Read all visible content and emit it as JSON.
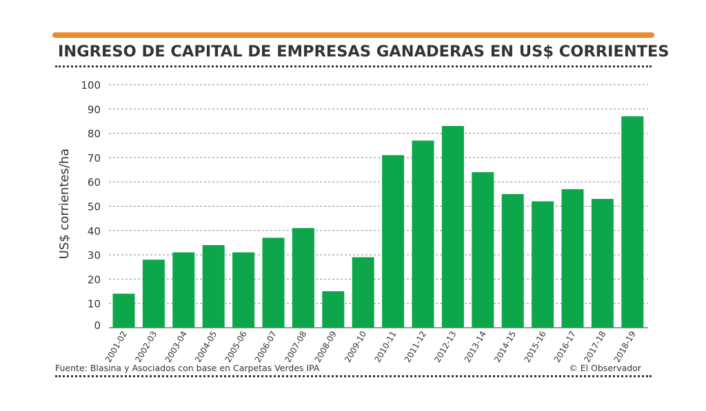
{
  "header": {
    "title": "INGRESO DE CAPITAL DE EMPRESAS GANADERAS EN US$ CORRIENTES"
  },
  "footer": {
    "source": "Fuente: Blasina y Asociados con base en Carpetas Verdes IPA",
    "credit": "© El Observador"
  },
  "colors": {
    "accent_bar": "#ec8a2c",
    "bar": "#0ea64b",
    "text": "#333333",
    "grid": "#888888"
  },
  "chart_data": {
    "type": "bar",
    "title": "INGRESO DE CAPITAL DE EMPRESAS GANADERAS EN US$ CORRIENTES",
    "xlabel": "",
    "ylabel": "US$ corrientes/ha",
    "ylim": [
      0,
      100
    ],
    "yticks": [
      0,
      10,
      20,
      30,
      40,
      50,
      60,
      70,
      80,
      90,
      100
    ],
    "grid": true,
    "categories": [
      "2001-02",
      "2002-03",
      "2003-04",
      "2004-05",
      "2005-06",
      "2006-07",
      "2007-08",
      "2008-09",
      "2009-10",
      "2010-11",
      "2011-12",
      "2012-13",
      "2013-14",
      "2014-15",
      "2015-16",
      "2016-17",
      "2017-18",
      "2018-19"
    ],
    "values": [
      14,
      28,
      31,
      34,
      31,
      37,
      41,
      15,
      29,
      71,
      77,
      83,
      64,
      55,
      52,
      57,
      53,
      87
    ]
  }
}
